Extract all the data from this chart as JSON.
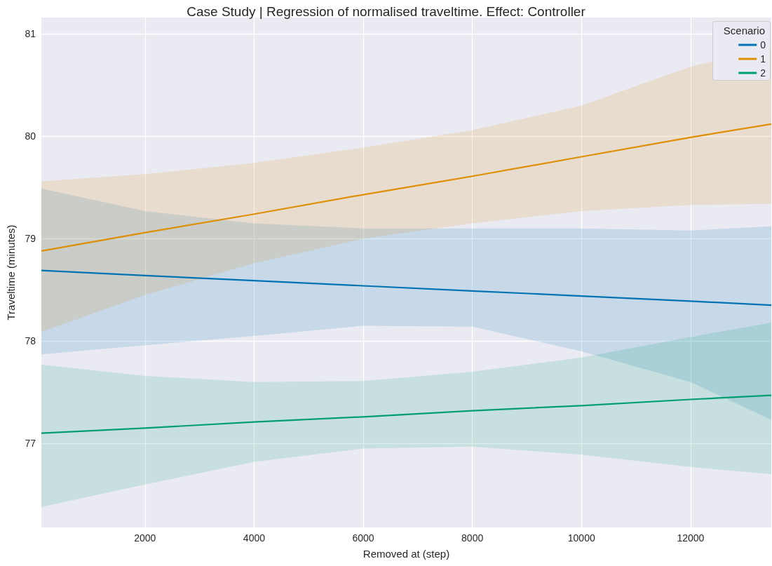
{
  "chart_data": {
    "type": "line",
    "title": "Case Study | Regression of normalised traveltime. Effect: Controller",
    "xlabel": "Removed at (step)",
    "ylabel": "Traveltime (minutes)",
    "legend_title": "Scenario",
    "x": [
      100,
      2000,
      4000,
      6000,
      8000,
      10000,
      12000,
      13480
    ],
    "series": [
      {
        "name": "0",
        "color": "#0173b2",
        "values": [
          78.69,
          78.64,
          78.59,
          78.54,
          78.49,
          78.44,
          78.39,
          78.35
        ],
        "upper": [
          79.49,
          79.27,
          79.15,
          79.1,
          79.1,
          79.1,
          79.08,
          79.12
        ],
        "lower": [
          77.87,
          77.96,
          78.05,
          78.15,
          78.14,
          77.9,
          77.6,
          77.23
        ]
      },
      {
        "name": "1",
        "color": "#de8f05",
        "values": [
          78.88,
          79.06,
          79.24,
          79.43,
          79.61,
          79.8,
          79.99,
          80.12
        ],
        "upper": [
          79.56,
          79.63,
          79.74,
          79.89,
          80.06,
          80.3,
          80.68,
          80.87
        ],
        "lower": [
          78.09,
          78.45,
          78.76,
          79.0,
          79.15,
          79.27,
          79.33,
          79.34
        ]
      },
      {
        "name": "2",
        "color": "#029e73",
        "values": [
          77.1,
          77.15,
          77.21,
          77.26,
          77.32,
          77.37,
          77.43,
          77.47
        ],
        "upper": [
          77.77,
          77.66,
          77.6,
          77.61,
          77.7,
          77.84,
          78.04,
          78.18
        ],
        "lower": [
          76.38,
          76.6,
          76.82,
          76.95,
          76.97,
          76.89,
          76.77,
          76.7
        ]
      }
    ],
    "xlim": [
      100,
      13480
    ],
    "ylim": [
      76.18,
      81.16
    ],
    "xticks": [
      2000,
      4000,
      6000,
      8000,
      10000,
      12000
    ],
    "yticks": [
      77,
      78,
      79,
      80,
      81
    ],
    "grid": true,
    "legend": "top right",
    "marker": "none",
    "line_style": "solid"
  }
}
